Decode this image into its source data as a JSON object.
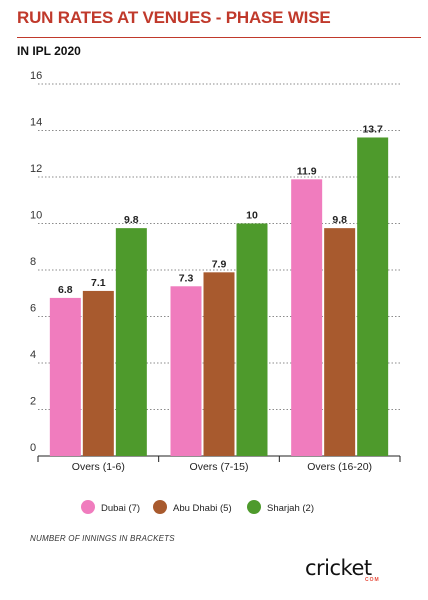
{
  "header": {
    "title": "RUN RATES AT VENUES - PHASE WISE",
    "subtitle": "IN IPL 2020"
  },
  "footnote": "NUMBER OF INNINGS IN BRACKETS",
  "logo": {
    "word": "cricket",
    "sub": "COM"
  },
  "chart_data": {
    "type": "bar",
    "title": "RUN RATES AT VENUES - PHASE WISE",
    "subtitle": "IN IPL 2020",
    "xlabel": "",
    "ylabel": "",
    "categories": [
      "Overs (1-6)",
      "Overs (7-15)",
      "Overs (16-20)"
    ],
    "series": [
      {
        "name": "Dubai  (7)",
        "color": "#f07cbe",
        "values": [
          6.8,
          7.3,
          11.9
        ],
        "labels": [
          "6.8",
          "7.3",
          "11.9"
        ]
      },
      {
        "name": "Abu Dhabi (5)",
        "color": "#a85a2e",
        "values": [
          7.1,
          7.9,
          9.8
        ],
        "labels": [
          "7.1",
          "7.9",
          "9.8"
        ]
      },
      {
        "name": "Sharjah (2)",
        "color": "#4e9a2c",
        "values": [
          9.8,
          10,
          13.7
        ],
        "labels": [
          "9.8",
          "10",
          "13.7"
        ]
      }
    ],
    "ylim": [
      0,
      16
    ],
    "yticks": [
      0,
      2,
      4,
      6,
      8,
      10,
      12,
      14,
      16
    ],
    "grid": true,
    "legend": "bottom"
  }
}
